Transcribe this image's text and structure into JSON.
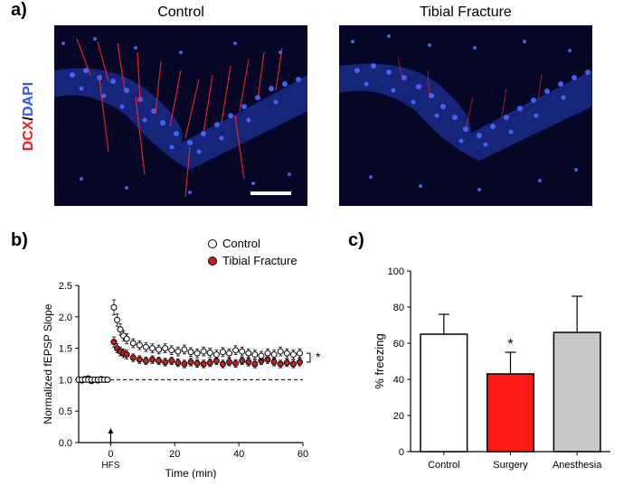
{
  "panelA": {
    "label": "a)",
    "leftTitle": "Control",
    "rightTitle": "Tibial Fracture",
    "yLabelDCX": "DCX",
    "yLabelSep": "/",
    "yLabelDAPI": "DAPI",
    "dcxColor": "#ff1a1a",
    "dapiColor": "#3355ff",
    "bgColor": "#060626"
  },
  "panelB": {
    "label": "b)",
    "type": "scatter-line",
    "xlabel": "Time (min)",
    "ylabel": "Normalized fEPSP Slope",
    "xlim": [
      -10,
      60
    ],
    "ylim": [
      0,
      2.5
    ],
    "xticks": [
      0,
      20,
      40,
      60
    ],
    "yticks": [
      0.0,
      0.5,
      1.0,
      1.5,
      2.0,
      2.5
    ],
    "baseline_y": 1.0,
    "hfs_x": 0,
    "hfs_label": "HFS",
    "sig_marker": "*",
    "legend": [
      {
        "label": "Control",
        "fill": "#ffffff",
        "stroke": "#000000"
      },
      {
        "label": "Tibial Fracture",
        "fill": "#c81e1e",
        "stroke": "#000000"
      }
    ],
    "series": {
      "control": {
        "fill": "#ffffff",
        "stroke": "#000000",
        "points": [
          {
            "x": -10,
            "y": 1.0,
            "err": 0.03
          },
          {
            "x": -9,
            "y": 1.0,
            "err": 0.03
          },
          {
            "x": -8,
            "y": 1.0,
            "err": 0.03
          },
          {
            "x": -7,
            "y": 1.0,
            "err": 0.03
          },
          {
            "x": -6,
            "y": 1.0,
            "err": 0.03
          },
          {
            "x": -5,
            "y": 1.0,
            "err": 0.03
          },
          {
            "x": -4,
            "y": 1.0,
            "err": 0.03
          },
          {
            "x": -3,
            "y": 1.0,
            "err": 0.03
          },
          {
            "x": -2,
            "y": 1.0,
            "err": 0.03
          },
          {
            "x": -1,
            "y": 1.0,
            "err": 0.03
          },
          {
            "x": 1,
            "y": 2.15,
            "err": 0.12
          },
          {
            "x": 2,
            "y": 1.95,
            "err": 0.1
          },
          {
            "x": 3,
            "y": 1.8,
            "err": 0.09
          },
          {
            "x": 4,
            "y": 1.7,
            "err": 0.08
          },
          {
            "x": 5,
            "y": 1.65,
            "err": 0.08
          },
          {
            "x": 7,
            "y": 1.58,
            "err": 0.07
          },
          {
            "x": 9,
            "y": 1.55,
            "err": 0.07
          },
          {
            "x": 11,
            "y": 1.52,
            "err": 0.07
          },
          {
            "x": 13,
            "y": 1.5,
            "err": 0.07
          },
          {
            "x": 15,
            "y": 1.48,
            "err": 0.07
          },
          {
            "x": 17,
            "y": 1.5,
            "err": 0.07
          },
          {
            "x": 19,
            "y": 1.47,
            "err": 0.07
          },
          {
            "x": 21,
            "y": 1.45,
            "err": 0.07
          },
          {
            "x": 23,
            "y": 1.48,
            "err": 0.07
          },
          {
            "x": 25,
            "y": 1.44,
            "err": 0.07
          },
          {
            "x": 27,
            "y": 1.42,
            "err": 0.07
          },
          {
            "x": 29,
            "y": 1.45,
            "err": 0.07
          },
          {
            "x": 31,
            "y": 1.43,
            "err": 0.07
          },
          {
            "x": 33,
            "y": 1.4,
            "err": 0.07
          },
          {
            "x": 35,
            "y": 1.44,
            "err": 0.07
          },
          {
            "x": 37,
            "y": 1.42,
            "err": 0.07
          },
          {
            "x": 39,
            "y": 1.47,
            "err": 0.07
          },
          {
            "x": 41,
            "y": 1.45,
            "err": 0.07
          },
          {
            "x": 43,
            "y": 1.42,
            "err": 0.07
          },
          {
            "x": 45,
            "y": 1.4,
            "err": 0.07
          },
          {
            "x": 47,
            "y": 1.38,
            "err": 0.07
          },
          {
            "x": 49,
            "y": 1.42,
            "err": 0.07
          },
          {
            "x": 51,
            "y": 1.4,
            "err": 0.07
          },
          {
            "x": 53,
            "y": 1.45,
            "err": 0.07
          },
          {
            "x": 55,
            "y": 1.42,
            "err": 0.07
          },
          {
            "x": 57,
            "y": 1.4,
            "err": 0.07
          },
          {
            "x": 59,
            "y": 1.42,
            "err": 0.07
          }
        ]
      },
      "fracture": {
        "fill": "#c81e1e",
        "stroke": "#000000",
        "points": [
          {
            "x": -10,
            "y": 1.0,
            "err": 0.03
          },
          {
            "x": -9,
            "y": 0.99,
            "err": 0.03
          },
          {
            "x": -8,
            "y": 1.01,
            "err": 0.03
          },
          {
            "x": -7,
            "y": 1.02,
            "err": 0.02
          },
          {
            "x": -6,
            "y": 0.98,
            "err": 0.03
          },
          {
            "x": -5,
            "y": 1.0,
            "err": 0.03
          },
          {
            "x": -4,
            "y": 0.99,
            "err": 0.03
          },
          {
            "x": -3,
            "y": 1.01,
            "err": 0.03
          },
          {
            "x": -2,
            "y": 1.0,
            "err": 0.03
          },
          {
            "x": -1,
            "y": 1.0,
            "err": 0.03
          },
          {
            "x": 1,
            "y": 1.6,
            "err": 0.08
          },
          {
            "x": 2,
            "y": 1.5,
            "err": 0.07
          },
          {
            "x": 3,
            "y": 1.45,
            "err": 0.07
          },
          {
            "x": 4,
            "y": 1.42,
            "err": 0.07
          },
          {
            "x": 5,
            "y": 1.4,
            "err": 0.07
          },
          {
            "x": 7,
            "y": 1.35,
            "err": 0.06
          },
          {
            "x": 9,
            "y": 1.32,
            "err": 0.06
          },
          {
            "x": 11,
            "y": 1.3,
            "err": 0.06
          },
          {
            "x": 13,
            "y": 1.32,
            "err": 0.06
          },
          {
            "x": 15,
            "y": 1.3,
            "err": 0.06
          },
          {
            "x": 17,
            "y": 1.28,
            "err": 0.06
          },
          {
            "x": 19,
            "y": 1.3,
            "err": 0.06
          },
          {
            "x": 21,
            "y": 1.27,
            "err": 0.06
          },
          {
            "x": 23,
            "y": 1.25,
            "err": 0.06
          },
          {
            "x": 25,
            "y": 1.28,
            "err": 0.06
          },
          {
            "x": 27,
            "y": 1.26,
            "err": 0.06
          },
          {
            "x": 29,
            "y": 1.25,
            "err": 0.06
          },
          {
            "x": 31,
            "y": 1.27,
            "err": 0.06
          },
          {
            "x": 33,
            "y": 1.3,
            "err": 0.06
          },
          {
            "x": 35,
            "y": 1.25,
            "err": 0.06
          },
          {
            "x": 37,
            "y": 1.28,
            "err": 0.06
          },
          {
            "x": 39,
            "y": 1.26,
            "err": 0.06
          },
          {
            "x": 41,
            "y": 1.3,
            "err": 0.06
          },
          {
            "x": 43,
            "y": 1.28,
            "err": 0.06
          },
          {
            "x": 45,
            "y": 1.25,
            "err": 0.06
          },
          {
            "x": 47,
            "y": 1.3,
            "err": 0.06
          },
          {
            "x": 49,
            "y": 1.32,
            "err": 0.06
          },
          {
            "x": 51,
            "y": 1.28,
            "err": 0.06
          },
          {
            "x": 53,
            "y": 1.25,
            "err": 0.06
          },
          {
            "x": 55,
            "y": 1.27,
            "err": 0.06
          },
          {
            "x": 57,
            "y": 1.25,
            "err": 0.06
          },
          {
            "x": 59,
            "y": 1.28,
            "err": 0.06
          }
        ]
      }
    }
  },
  "panelC": {
    "label": "c)",
    "type": "bar",
    "ylabel": "% freezing",
    "ylim": [
      0,
      100
    ],
    "yticks": [
      0,
      20,
      40,
      60,
      80,
      100
    ],
    "categories": [
      "Control",
      "Surgery",
      "Anesthesia"
    ],
    "values": [
      65,
      43,
      66
    ],
    "errors": [
      11,
      12,
      20
    ],
    "fills": [
      "#ffffff",
      "#ff1a1a",
      "#c8c8c8"
    ],
    "strokes": [
      "#000000",
      "#000000",
      "#000000"
    ],
    "sig": [
      null,
      "*",
      null
    ],
    "bar_width": 0.7
  }
}
